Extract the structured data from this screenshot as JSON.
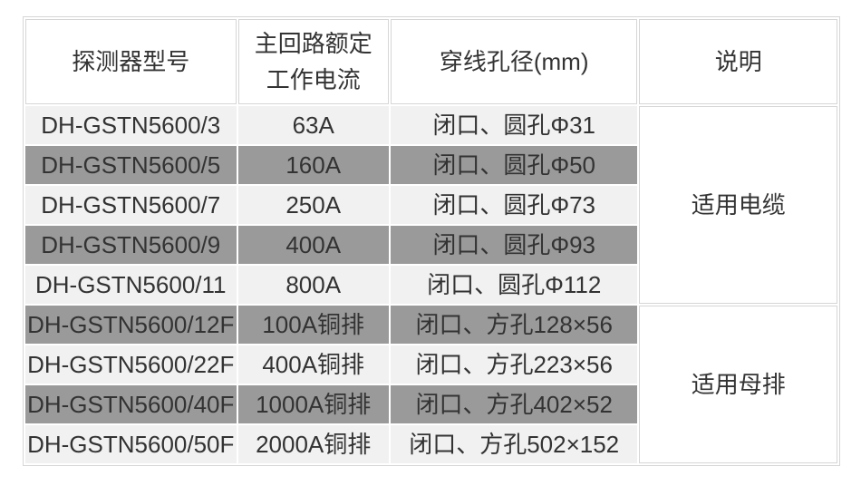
{
  "chart_data": {
    "type": "table",
    "columns": [
      "探测器型号",
      "主回路额定工作电流",
      "穿线孔径(mm)",
      "说明"
    ],
    "rows": [
      [
        "DH-GSTN5600/3",
        "63A",
        "闭口、圆孔Φ31",
        "适用电缆"
      ],
      [
        "DH-GSTN5600/5",
        "160A",
        "闭口、圆孔Φ50",
        "适用电缆"
      ],
      [
        "DH-GSTN5600/7",
        "250A",
        "闭口、圆孔Φ73",
        "适用电缆"
      ],
      [
        "DH-GSTN5600/9",
        "400A",
        "闭口、圆孔Φ93",
        "适用电缆"
      ],
      [
        "DH-GSTN5600/11",
        "800A",
        "闭口、圆孔Φ112",
        "适用电缆"
      ],
      [
        "DH-GSTN5600/12F",
        "100A铜排",
        "闭口、方孔128×56",
        "适用母排"
      ],
      [
        "DH-GSTN5600/22F",
        "400A铜排",
        "闭口、方孔223×56",
        "适用母排"
      ],
      [
        "DH-GSTN5600/40F",
        "1000A铜排",
        "闭口、方孔402×52",
        "适用母排"
      ],
      [
        "DH-GSTN5600/50F",
        "2000A铜排",
        "闭口、方孔502×152",
        "适用母排"
      ]
    ],
    "layout_hints": {
      "note_column_merged": true,
      "merged_groups": [
        {
          "label": "适用电缆",
          "row_span": 5
        },
        {
          "label": "适用母排",
          "row_span": 4
        }
      ],
      "alternating_row_shading": true
    }
  },
  "table": {
    "headers": {
      "model": "探测器型号",
      "current": "主回路额定\n工作电流",
      "aperture": "穿线孔径(mm)",
      "note": "说明"
    },
    "rows": [
      {
        "model": "DH-GSTN5600/3",
        "current": "63A",
        "aperture": "闭口、圆孔Φ31",
        "shade": "light"
      },
      {
        "model": "DH-GSTN5600/5",
        "current": "160A",
        "aperture": "闭口、圆孔Φ50",
        "shade": "dark"
      },
      {
        "model": "DH-GSTN5600/7",
        "current": "250A",
        "aperture": "闭口、圆孔Φ73",
        "shade": "light"
      },
      {
        "model": "DH-GSTN5600/9",
        "current": "400A",
        "aperture": "闭口、圆孔Φ93",
        "shade": "dark"
      },
      {
        "model": "DH-GSTN5600/11",
        "current": "800A",
        "aperture": "闭口、圆孔Φ112",
        "shade": "light"
      },
      {
        "model": "DH-GSTN5600/12F",
        "current": "100A铜排",
        "aperture": "闭口、方孔128×56",
        "shade": "dark"
      },
      {
        "model": "DH-GSTN5600/22F",
        "current": "400A铜排",
        "aperture": "闭口、方孔223×56",
        "shade": "light"
      },
      {
        "model": "DH-GSTN5600/40F",
        "current": "1000A铜排",
        "aperture": "闭口、方孔402×52",
        "shade": "dark"
      },
      {
        "model": "DH-GSTN5600/50F",
        "current": "2000A铜排",
        "aperture": "闭口、方孔502×152",
        "shade": "light"
      }
    ],
    "groups": [
      {
        "label": "适用电缆",
        "row_span": 5
      },
      {
        "label": "适用母排",
        "row_span": 4
      }
    ],
    "colors": {
      "row_light": "#f1f1f1",
      "row_dark": "#9a9a9a",
      "border": "#d6d6d6",
      "text": "#333333",
      "background": "#ffffff"
    }
  }
}
